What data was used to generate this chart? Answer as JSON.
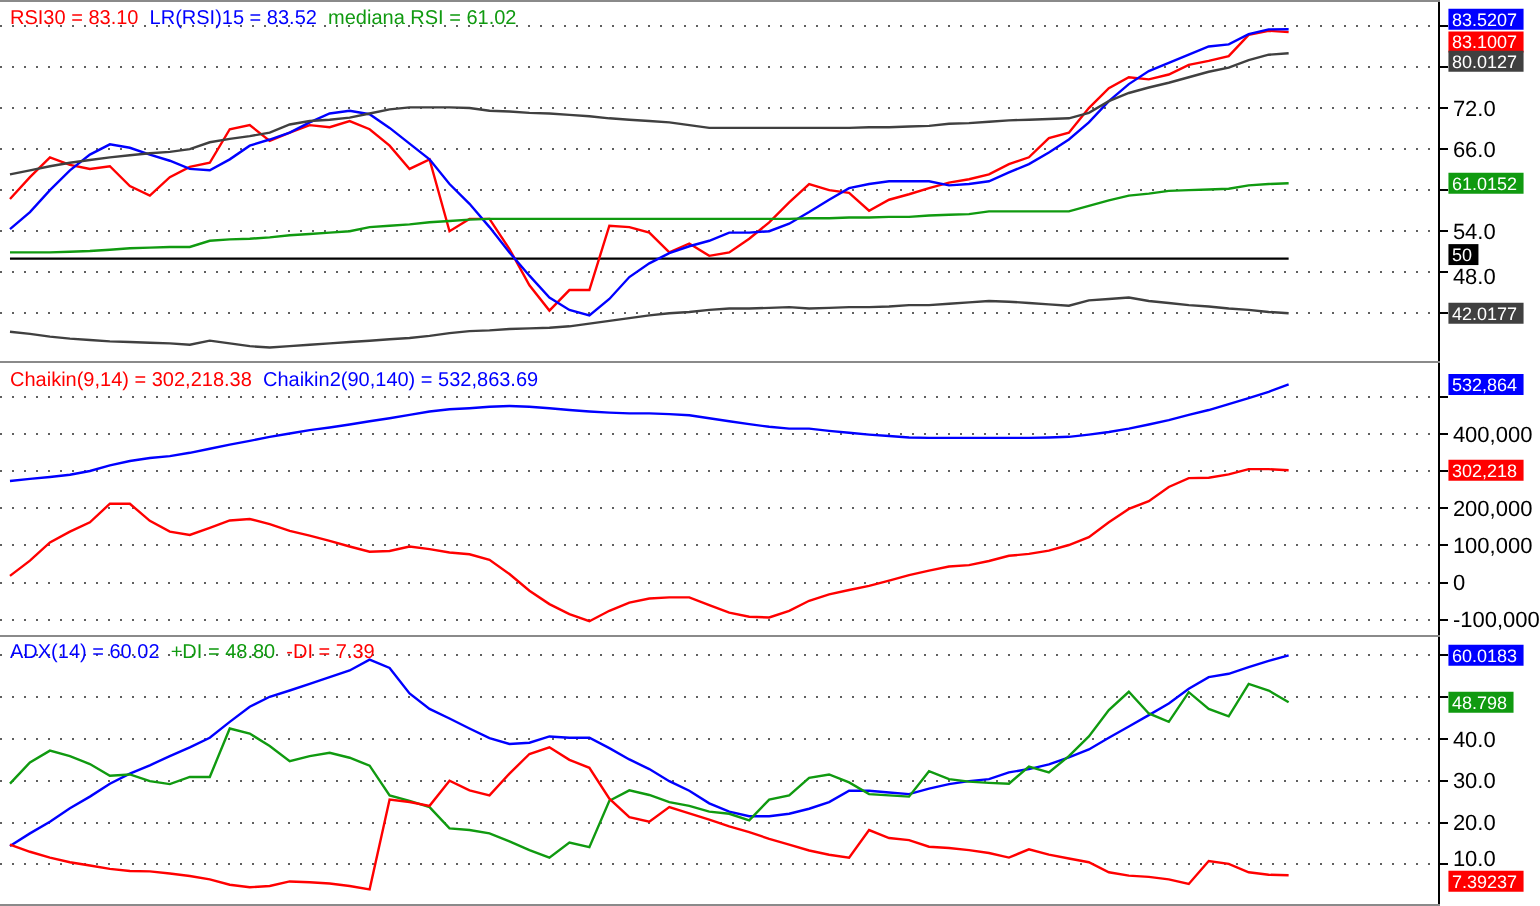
{
  "chart_data": [
    {
      "type": "line",
      "categories": [
        null,
        null,
        null,
        null,
        null,
        null,
        null,
        null,
        null,
        null,
        null,
        null,
        null,
        null,
        null,
        null,
        null,
        null,
        null,
        null,
        null,
        null,
        null,
        null,
        null,
        null,
        null,
        null,
        null,
        null,
        null,
        null,
        null,
        null,
        null,
        null,
        null,
        null,
        null,
        null,
        null,
        null,
        null,
        null,
        null,
        null,
        null,
        null,
        null,
        null,
        null,
        null,
        null,
        null,
        null,
        null,
        null,
        null,
        null,
        null,
        null,
        null,
        null,
        null,
        null,
        null,
        null,
        null,
        null,
        null,
        null,
        null
      ],
      "series": [
        {
          "name": "RSI30 = 83.10",
          "color": "#ff0000",
          "values": [
            58.7,
            61.9,
            64.8,
            63.7,
            63.1,
            63.5,
            60.6,
            59.2,
            61.9,
            63.4,
            64.0,
            68.9,
            69.5,
            67.2,
            68.4,
            69.5,
            69.2,
            70.1,
            68.9,
            66.5,
            63.1,
            64.5,
            54.0,
            55.8,
            55.8,
            51.4,
            46.1,
            42.4,
            45.4,
            45.4,
            54.8,
            54.6,
            53.8,
            50.9,
            52.2,
            50.4,
            50.9,
            52.9,
            55.3,
            58.2,
            60.9,
            60.0,
            59.6,
            57.0,
            58.6,
            59.4,
            60.3,
            61.1,
            61.6,
            62.3,
            63.8,
            64.8,
            67.6,
            68.4,
            72.0,
            74.9,
            76.5,
            76.2,
            76.9,
            78.3,
            78.9,
            79.6,
            82.7,
            83.3,
            83.1007,
            null,
            null,
            null,
            null,
            null,
            null,
            null
          ]
        },
        {
          "name": "LR(RSI)15 = 83.52",
          "color": "#0000ff",
          "values": [
            54.3,
            56.8,
            60.0,
            62.9,
            65.2,
            66.7,
            66.2,
            65.2,
            64.3,
            63.1,
            62.9,
            64.5,
            66.5,
            67.4,
            68.4,
            69.9,
            71.2,
            71.6,
            71.1,
            69.1,
            66.8,
            64.5,
            60.9,
            58.0,
            54.6,
            50.9,
            47.5,
            44.3,
            42.5,
            41.7,
            44.1,
            47.3,
            49.3,
            50.8,
            51.8,
            52.6,
            53.8,
            53.8,
            54.0,
            55.1,
            56.8,
            58.6,
            60.3,
            60.9,
            61.3,
            61.3,
            61.3,
            60.7,
            60.9,
            61.3,
            62.6,
            63.8,
            65.5,
            67.4,
            69.9,
            73.0,
            75.5,
            77.4,
            78.6,
            79.8,
            81.0,
            81.3,
            82.8,
            83.5,
            83.5207,
            null,
            null,
            null,
            null,
            null,
            null,
            null
          ]
        },
        {
          "name": "mediana RSI = 61.02",
          "color": "#109a10",
          "values": [
            50.9,
            50.9,
            50.9,
            51.0,
            51.1,
            51.3,
            51.5,
            51.6,
            51.7,
            51.7,
            52.6,
            52.8,
            52.9,
            53.1,
            53.4,
            53.6,
            53.8,
            54.0,
            54.6,
            54.8,
            55.0,
            55.3,
            55.5,
            55.7,
            55.8,
            55.8,
            55.8,
            55.8,
            55.8,
            55.8,
            55.8,
            55.8,
            55.8,
            55.8,
            55.8,
            55.8,
            55.8,
            55.8,
            55.8,
            55.8,
            55.9,
            55.9,
            56.0,
            56.0,
            56.1,
            56.1,
            56.3,
            56.4,
            56.5,
            56.9,
            56.9,
            56.9,
            56.9,
            56.9,
            57.7,
            58.5,
            59.2,
            59.5,
            59.9,
            60.0,
            60.1,
            60.2,
            60.7,
            60.9,
            61.0152,
            null,
            null,
            null,
            null,
            null,
            null,
            null
          ]
        },
        {
          "color": "#404040",
          "values": [
            62.3,
            62.9,
            63.5,
            64.0,
            64.4,
            64.8,
            65.1,
            65.4,
            65.6,
            66.0,
            67.0,
            67.5,
            67.9,
            68.4,
            69.6,
            70.1,
            70.3,
            70.6,
            71.2,
            71.8,
            72.1,
            72.1,
            72.1,
            72.0,
            71.6,
            71.5,
            71.3,
            71.2,
            71.0,
            70.8,
            70.5,
            70.3,
            70.1,
            69.9,
            69.5,
            69.1,
            69.1,
            69.1,
            69.1,
            69.1,
            69.1,
            69.1,
            69.1,
            69.2,
            69.2,
            69.3,
            69.4,
            69.7,
            69.8,
            70.0,
            70.2,
            70.3,
            70.4,
            70.5,
            71.3,
            73.0,
            74.2,
            75.0,
            75.7,
            76.5,
            77.3,
            77.9,
            79.0,
            79.8,
            80.0127,
            null,
            null,
            null,
            null,
            null,
            null,
            null
          ]
        },
        {
          "color": "#404040",
          "values": [
            39.3,
            39.0,
            38.6,
            38.3,
            38.1,
            37.9,
            37.8,
            37.7,
            37.6,
            37.4,
            38.0,
            37.6,
            37.2,
            37.0,
            37.2,
            37.4,
            37.6,
            37.8,
            38.0,
            38.2,
            38.4,
            38.7,
            39.1,
            39.4,
            39.5,
            39.7,
            39.8,
            39.9,
            40.1,
            40.5,
            40.9,
            41.3,
            41.7,
            42.0,
            42.2,
            42.5,
            42.7,
            42.7,
            42.8,
            42.9,
            42.7,
            42.8,
            42.9,
            42.9,
            43.0,
            43.2,
            43.2,
            43.4,
            43.6,
            43.8,
            43.7,
            43.5,
            43.3,
            43.1,
            43.9,
            44.1,
            44.3,
            43.8,
            43.5,
            43.2,
            43.0,
            42.7,
            42.5,
            42.2,
            42.0177,
            null,
            null,
            null,
            null,
            null,
            null,
            null
          ]
        }
      ],
      "ref_lines": [
        {
          "axis": "y",
          "value": 50,
          "color": "#000000"
        }
      ],
      "ylim": [
        35,
        87.5
      ],
      "yticks": [
        {
          "value": 84,
          "label": null
        },
        {
          "value": 83.5207,
          "label": "83.5207"
        },
        {
          "value": 83.1007,
          "label": "83.1007"
        },
        {
          "value": 80.0127,
          "label": "80.0127"
        },
        {
          "value": 78,
          "label": null
        },
        {
          "value": 72,
          "label": "72.0"
        },
        {
          "value": 66,
          "label": "66.0"
        },
        {
          "value": 61.0152,
          "label": "61.0152"
        },
        {
          "value": 60,
          "label": null
        },
        {
          "value": 54,
          "label": "54.0"
        },
        {
          "value": 50,
          "label": "50"
        },
        {
          "value": 48,
          "label": "48.0"
        },
        {
          "value": 42.0177,
          "label": "42.0177"
        },
        {
          "value": 42,
          "label": null
        }
      ],
      "grid": "y",
      "legend": "top left",
      "tick_labels": "y"
    },
    {
      "type": "line",
      "categories": [
        null,
        null,
        null,
        null,
        null,
        null,
        null,
        null,
        null,
        null,
        null,
        null,
        null,
        null,
        null,
        null,
        null,
        null,
        null,
        null,
        null,
        null,
        null,
        null,
        null,
        null,
        null,
        null,
        null,
        null,
        null,
        null,
        null,
        null,
        null,
        null,
        null,
        null,
        null,
        null,
        null,
        null,
        null,
        null,
        null,
        null,
        null,
        null,
        null,
        null,
        null,
        null,
        null,
        null,
        null,
        null,
        null,
        null,
        null,
        null,
        null,
        null,
        null,
        null,
        null,
        null,
        null,
        null,
        null,
        null,
        null,
        null
      ],
      "series": [
        {
          "name": "Chaikin(9,14) = 302,218.38",
          "color": "#ff0000",
          "values": [
            18000,
            59000,
            108000,
            137000,
            162000,
            212000,
            212000,
            166000,
            137000,
            128000,
            147000,
            167000,
            171000,
            157000,
            139000,
            126000,
            112000,
            97000,
            83000,
            85000,
            97000,
            90000,
            81000,
            76000,
            61000,
            23000,
            -22000,
            -58000,
            -85000,
            -104000,
            -76000,
            -54000,
            -43000,
            -40000,
            -40000,
            -61000,
            -81000,
            -92000,
            -94000,
            -76000,
            -49000,
            -32000,
            -20000,
            -9000,
            5000,
            20000,
            32000,
            43000,
            47000,
            58000,
            72000,
            77000,
            86000,
            101000,
            122000,
            162000,
            198000,
            219000,
            257000,
            281000,
            282000,
            291000,
            305000,
            305000,
            302218,
            null,
            null,
            null,
            null,
            null,
            null,
            null
          ]
        },
        {
          "name": "Chaikin2(90,140) = 532,863.69",
          "color": "#0000ff",
          "values": [
            273000,
            279000,
            284000,
            290000,
            300000,
            315000,
            327000,
            335000,
            340000,
            349000,
            360000,
            371000,
            381000,
            392000,
            401000,
            410000,
            417000,
            425000,
            434000,
            442000,
            451000,
            460000,
            466000,
            469000,
            473000,
            475000,
            473000,
            469000,
            464000,
            460000,
            457000,
            455000,
            455000,
            453000,
            450000,
            442000,
            434000,
            426000,
            419000,
            414000,
            414000,
            408000,
            403000,
            398000,
            394000,
            390000,
            389000,
            389000,
            389000,
            389000,
            389000,
            389000,
            390000,
            392000,
            398000,
            405000,
            414000,
            425000,
            437000,
            451000,
            464000,
            480000,
            496000,
            513000,
            532864,
            null,
            null,
            null,
            null,
            null,
            null,
            null
          ]
        }
      ],
      "ylim": [
        -140000,
        590000
      ],
      "yticks": [
        {
          "value": 532864,
          "label": "532,864"
        },
        {
          "value": 500000,
          "label": null
        },
        {
          "value": 400000,
          "label": "400,000"
        },
        {
          "value": 302218,
          "label": "302,218"
        },
        {
          "value": 300000,
          "label": null
        },
        {
          "value": 200000,
          "label": "200,000"
        },
        {
          "value": 100000,
          "label": "100,000"
        },
        {
          "value": 0,
          "label": "0"
        },
        {
          "value": -100000,
          "label": "-100,000"
        }
      ],
      "grid": "y",
      "legend": "top left",
      "tick_labels": "y"
    },
    {
      "type": "line",
      "categories": [
        null,
        null,
        null,
        null,
        null,
        null,
        null,
        null,
        null,
        null,
        null,
        null,
        null,
        null,
        null,
        null,
        null,
        null,
        null,
        null,
        null,
        null,
        null,
        null,
        null,
        null,
        null,
        null,
        null,
        null,
        null,
        null,
        null,
        null,
        null,
        null,
        null,
        null,
        null,
        null,
        null,
        null,
        null,
        null,
        null,
        null,
        null,
        null,
        null,
        null,
        null,
        null,
        null,
        null,
        null,
        null,
        null,
        null,
        null,
        null,
        null,
        null,
        null,
        null,
        null,
        null,
        null,
        null,
        null,
        null,
        null,
        null
      ],
      "series": [
        {
          "name": "ADX(14) = 60.02",
          "color": "#0000ff",
          "values": [
            14.4,
            17.4,
            20.2,
            23.4,
            26.2,
            29.3,
            31.7,
            33.7,
            35.9,
            38.0,
            40.3,
            44.1,
            47.7,
            50.1,
            51.6,
            53.2,
            54.8,
            56.4,
            59.0,
            57.0,
            50.9,
            47.2,
            44.9,
            42.5,
            40.2,
            38.8,
            39.1,
            40.6,
            40.3,
            40.3,
            37.8,
            35.1,
            32.8,
            29.9,
            27.6,
            24.6,
            22.6,
            21.5,
            21.5,
            22.1,
            23.3,
            24.9,
            27.6,
            27.6,
            27.2,
            26.8,
            28.1,
            29.2,
            29.9,
            30.4,
            32.0,
            32.8,
            33.9,
            35.6,
            37.5,
            40.3,
            43.0,
            45.7,
            48.5,
            52.0,
            54.8,
            55.6,
            57.2,
            58.7,
            60.0183,
            null,
            null,
            null,
            null,
            null,
            null,
            null
          ]
        },
        {
          "name": "+DI = 48.80",
          "color": "#109a10",
          "values": [
            29.3,
            34.4,
            37.2,
            35.9,
            34.0,
            31.2,
            31.5,
            29.9,
            29.2,
            30.9,
            30.9,
            42.5,
            41.3,
            38.3,
            34.7,
            35.9,
            36.7,
            35.5,
            33.6,
            26.5,
            25.2,
            23.7,
            18.6,
            18.2,
            17.4,
            15.5,
            13.4,
            11.6,
            15.2,
            14.1,
            25.2,
            27.7,
            26.6,
            24.9,
            24.0,
            22.6,
            22.1,
            20.5,
            25.5,
            26.5,
            30.7,
            31.5,
            29.6,
            26.8,
            26.5,
            26.2,
            32.3,
            30.4,
            29.8,
            29.5,
            29.3,
            33.4,
            32.0,
            35.9,
            40.6,
            46.9,
            51.3,
            46.1,
            44.1,
            51.2,
            47.2,
            45.4,
            53.2,
            51.6,
            48.798,
            null,
            null,
            null,
            null,
            null,
            null,
            null
          ]
        },
        {
          "name": "-DI = 7.39",
          "color": "#ff0000",
          "values": [
            14.7,
            13.0,
            11.6,
            10.5,
            9.7,
            8.9,
            8.4,
            8.3,
            7.8,
            7.2,
            6.4,
            5.1,
            4.5,
            4.8,
            5.9,
            5.7,
            5.4,
            4.8,
            4.0,
            25.5,
            24.9,
            24.0,
            30.0,
            27.7,
            26.5,
            31.7,
            36.4,
            38.0,
            35.0,
            33.1,
            25.7,
            21.3,
            20.2,
            23.7,
            22.2,
            20.7,
            19.1,
            17.7,
            16.1,
            14.7,
            13.3,
            12.3,
            11.6,
            18.2,
            16.3,
            15.8,
            14.2,
            13.9,
            13.4,
            12.7,
            11.6,
            13.6,
            12.3,
            11.4,
            10.5,
            8.1,
            7.3,
            7.0,
            6.4,
            5.3,
            10.8,
            10.1,
            8.1,
            7.5,
            7.39237,
            null,
            null,
            null,
            null,
            null,
            null,
            null
          ]
        }
      ],
      "ylim": [
        0.5,
        64.5
      ],
      "yticks": [
        {
          "value": 60.0183,
          "label": "60.0183"
        },
        {
          "value": 60,
          "label": null
        },
        {
          "value": 50,
          "label": null
        },
        {
          "value": 48.798,
          "label": "48.798"
        },
        {
          "value": 40,
          "label": "40.0"
        },
        {
          "value": 30,
          "label": "30.0"
        },
        {
          "value": 20,
          "label": "20.0"
        },
        {
          "value": 10,
          "label": "10.0"
        },
        {
          "value": 7.39237,
          "label": "7.39237"
        }
      ],
      "grid": "y",
      "legend": "top left",
      "tick_labels": "y"
    }
  ]
}
